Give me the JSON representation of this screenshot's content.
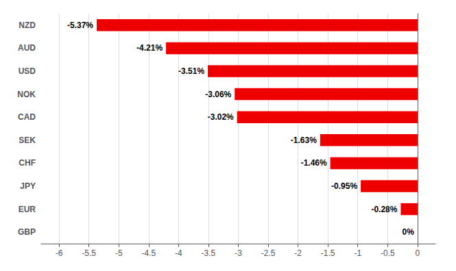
{
  "chart_data": {
    "type": "bar",
    "orientation": "horizontal",
    "categories": [
      "NZD",
      "AUD",
      "USD",
      "NOK",
      "CAD",
      "SEK",
      "CHF",
      "JPY",
      "EUR",
      "GBP"
    ],
    "values": [
      -5.37,
      -4.21,
      -3.51,
      -3.06,
      -3.02,
      -1.63,
      -1.46,
      -0.95,
      -0.28,
      0.0
    ],
    "value_labels": [
      "-5.37%",
      "-4.21%",
      "-3.51%",
      "-3.06%",
      "-3.02%",
      "-1.63%",
      "-1.46%",
      "-0.95%",
      "-0.28%",
      "0%"
    ],
    "data_labels": true,
    "color": "#ee0000",
    "xlim": [
      -6.3,
      0.3
    ],
    "xticks": [
      -6,
      -5.5,
      -5,
      -4.5,
      -4,
      -3.5,
      -3,
      -2.5,
      -2,
      -1.5,
      -1,
      -0.5,
      0
    ],
    "grid": true
  }
}
